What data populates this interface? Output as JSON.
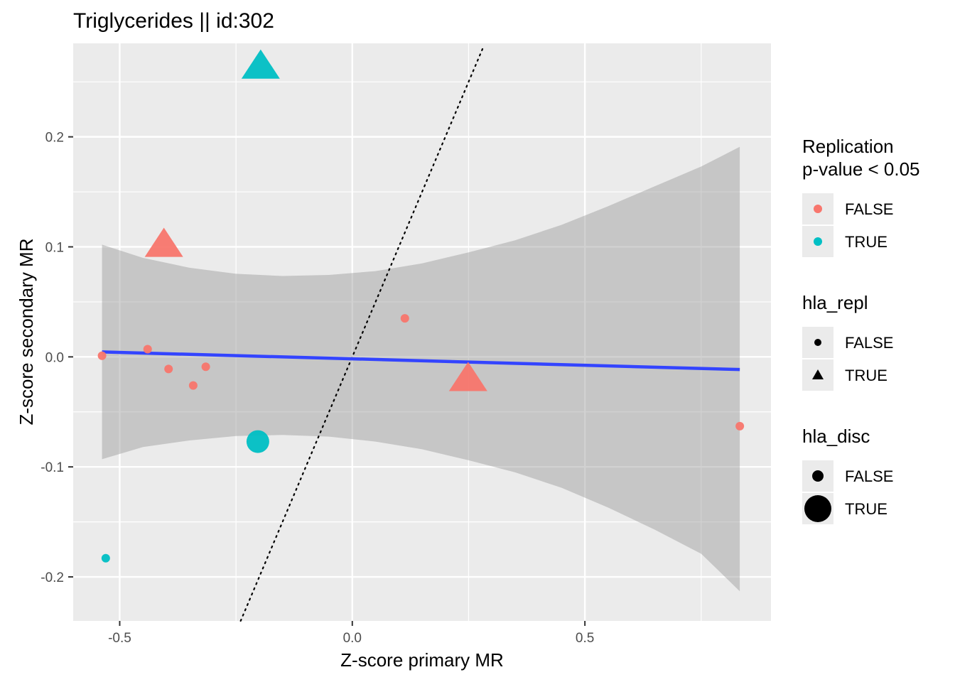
{
  "chart_data": {
    "type": "scatter",
    "title": "Triglycerides || id:302",
    "xlabel": "Z-score primary MR",
    "ylabel": "Z-score secondary MR",
    "xlim": [
      -0.6,
      0.9
    ],
    "ylim": [
      -0.24,
      0.285
    ],
    "x_ticks": [
      {
        "value": -0.5,
        "label": "-0.5"
      },
      {
        "value": 0.0,
        "label": "0.0"
      },
      {
        "value": 0.5,
        "label": "0.5"
      }
    ],
    "y_ticks": [
      {
        "value": -0.2,
        "label": "-0.2"
      },
      {
        "value": -0.1,
        "label": "-0.1"
      },
      {
        "value": 0.0,
        "label": "0.0"
      },
      {
        "value": 0.1,
        "label": "0.1"
      },
      {
        "value": 0.2,
        "label": "0.2"
      }
    ],
    "grid": true,
    "points": [
      {
        "x": -0.538,
        "y": 0.001,
        "replication": "FALSE",
        "hla_repl": "FALSE",
        "hla_disc": "FALSE"
      },
      {
        "x": -0.44,
        "y": 0.007,
        "replication": "FALSE",
        "hla_repl": "FALSE",
        "hla_disc": "FALSE"
      },
      {
        "x": -0.395,
        "y": -0.011,
        "replication": "FALSE",
        "hla_repl": "FALSE",
        "hla_disc": "FALSE"
      },
      {
        "x": -0.342,
        "y": -0.026,
        "replication": "FALSE",
        "hla_repl": "FALSE",
        "hla_disc": "FALSE"
      },
      {
        "x": -0.315,
        "y": -0.009,
        "replication": "FALSE",
        "hla_repl": "FALSE",
        "hla_disc": "FALSE"
      },
      {
        "x": 0.113,
        "y": 0.035,
        "replication": "FALSE",
        "hla_repl": "FALSE",
        "hla_disc": "FALSE"
      },
      {
        "x": 0.833,
        "y": -0.063,
        "replication": "FALSE",
        "hla_repl": "FALSE",
        "hla_disc": "FALSE"
      },
      {
        "x": -0.53,
        "y": -0.183,
        "replication": "TRUE",
        "hla_repl": "FALSE",
        "hla_disc": "FALSE"
      },
      {
        "x": -0.203,
        "y": -0.077,
        "replication": "TRUE",
        "hla_repl": "FALSE",
        "hla_disc": "TRUE"
      },
      {
        "x": -0.197,
        "y": 0.262,
        "replication": "TRUE",
        "hla_repl": "TRUE",
        "hla_disc": "TRUE"
      },
      {
        "x": -0.405,
        "y": 0.1,
        "replication": "FALSE",
        "hla_repl": "TRUE",
        "hla_disc": "TRUE"
      },
      {
        "x": 0.249,
        "y": -0.022,
        "replication": "FALSE",
        "hla_repl": "TRUE",
        "hla_disc": "TRUE"
      }
    ],
    "regression_line": {
      "x": [
        -0.538,
        0.833
      ],
      "y": [
        0.0045,
        -0.0115
      ],
      "color": "#3344ff"
    },
    "confidence_band": {
      "x": [
        -0.538,
        -0.45,
        -0.35,
        -0.25,
        -0.15,
        -0.05,
        0.05,
        0.15,
        0.25,
        0.35,
        0.45,
        0.55,
        0.65,
        0.75,
        0.833
      ],
      "upper": [
        0.102,
        0.09,
        0.081,
        0.0755,
        0.0735,
        0.0745,
        0.078,
        0.085,
        0.095,
        0.106,
        0.12,
        0.137,
        0.155,
        0.173,
        0.191
      ],
      "lower": [
        -0.093,
        -0.082,
        -0.076,
        -0.072,
        -0.071,
        -0.0725,
        -0.077,
        -0.084,
        -0.094,
        -0.105,
        -0.119,
        -0.137,
        -0.157,
        -0.179,
        -0.213
      ],
      "color": "#999999"
    },
    "identity_line": {
      "x": [
        -0.24,
        0.28
      ],
      "y": [
        -0.24,
        0.28
      ],
      "style": "dotted"
    },
    "colors": {
      "FALSE": "#f8766d",
      "TRUE": "#00bfc4",
      "panel": "#ebebeb",
      "grid": "#ffffff"
    },
    "legends": [
      {
        "title": [
          "Replication",
          "p-value < 0.05"
        ],
        "kind": "color",
        "entries": [
          {
            "label": "FALSE",
            "key": "FALSE"
          },
          {
            "label": "TRUE",
            "key": "TRUE"
          }
        ]
      },
      {
        "title": [
          "hla_repl"
        ],
        "kind": "shape",
        "entries": [
          {
            "label": "FALSE",
            "key": "circle"
          },
          {
            "label": "TRUE",
            "key": "triangle"
          }
        ]
      },
      {
        "title": [
          "hla_disc"
        ],
        "kind": "size",
        "entries": [
          {
            "label": "FALSE",
            "key": "small"
          },
          {
            "label": "TRUE",
            "key": "large"
          }
        ]
      }
    ]
  }
}
